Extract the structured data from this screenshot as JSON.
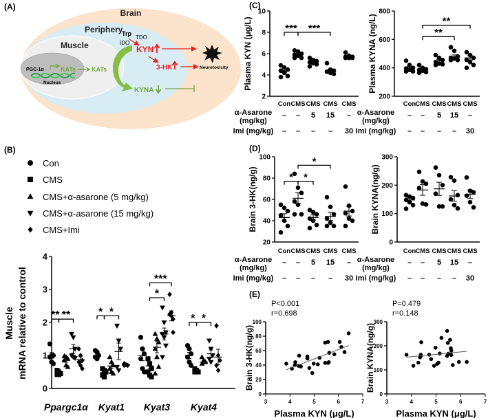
{
  "panel_labels": {
    "a": "(A)",
    "b": "(B)",
    "c": "(C)",
    "d": "(D)",
    "e": "(E)"
  },
  "diagram": {
    "brain": "Brain",
    "periphery": "Periphery",
    "muscle": "Muscle",
    "trp": "Trp",
    "tdo": "TDO",
    "ido": "IDO",
    "kyn": "KYN",
    "hk": "3-HK",
    "neurotoxicity": "Neurotoxicity",
    "pgc": "PGC-1α",
    "kats1": "KATs",
    "kats2": "KATs",
    "nucleus": "Nucleus",
    "kyna": "KYNA",
    "colors": {
      "brain": "#fbe3cc",
      "periphery": "#d7ecf3",
      "muscle": "#efefef",
      "nucleus": "#bdbdbd",
      "red": "#e8201c",
      "green": "#76a33a"
    }
  },
  "legend": [
    {
      "marker": "circle",
      "label": "Con"
    },
    {
      "marker": "square",
      "label": "CMS"
    },
    {
      "marker": "triangle-up",
      "label": "CMS+α-asarone (5 mg/kg)"
    },
    {
      "marker": "triangle-down",
      "label": "CMS+α-asarone (15 mg/kg)"
    },
    {
      "marker": "diamond",
      "label": "CMS+Imi"
    }
  ],
  "treatment_table": {
    "groups": [
      "Con",
      "CMS",
      "CMS",
      "CMS",
      "CMS"
    ],
    "asarone_label_1": "α-Asarone",
    "asarone_label_2": "(mg/kg)",
    "asarone": [
      "–",
      "–",
      "5",
      "15",
      "–"
    ],
    "imi_label": "Imi (mg/kg)",
    "imi": [
      "–",
      "–",
      "–",
      "–",
      "30"
    ]
  },
  "chart_data": [
    {
      "id": "B",
      "type": "scatter",
      "subtype": "grouped-dot-plot",
      "ylabel": [
        "Muscle",
        "mRNA relative to control"
      ],
      "ylim": [
        0,
        4
      ],
      "yticks": [
        "0",
        "1",
        "2",
        "3",
        "4"
      ],
      "categories": [
        "Ppargc1α",
        "Kyat1",
        "Kyat3",
        "Kyat4"
      ],
      "groups": [
        "Con",
        "CMS",
        "CMS+α-asarone (5 mg/kg)",
        "CMS+α-asarone (15 mg/kg)",
        "CMS+Imi"
      ],
      "data": [
        {
          "category": "Ppargc1α",
          "values": [
            [
              1.35,
              1.0,
              1.0,
              0.95,
              0.8,
              0.75
            ],
            [
              0.55,
              0.5,
              0.45,
              0.42,
              0.42
            ],
            [
              0.98,
              0.95,
              0.9,
              0.85,
              0.7,
              0.65
            ],
            [
              1.65,
              1.55,
              1.2,
              1.0,
              0.95,
              0.92
            ],
            [
              1.2,
              1.0,
              0.85,
              0.8,
              0.7,
              0.6
            ]
          ],
          "means": [
            1.0,
            0.48,
            0.85,
            1.2,
            0.87
          ],
          "sig": [
            {
              "from": 0,
              "to": 1,
              "y": 2.1,
              "label": "**"
            },
            {
              "from": 1,
              "to": 3,
              "y": 2.1,
              "label": "**"
            }
          ]
        },
        {
          "category": "Kyat1",
          "values": [
            [
              1.15,
              1.1,
              1.0,
              0.95,
              0.9
            ],
            [
              0.6,
              0.55,
              0.5,
              0.4,
              0.35
            ],
            [
              0.95,
              0.8,
              0.7,
              0.6,
              0.5,
              0.45
            ],
            [
              1.9,
              1.45,
              1.2,
              0.65,
              0.55
            ],
            [
              0.75,
              0.72,
              0.7,
              0.7
            ]
          ],
          "means": [
            1.0,
            0.48,
            0.68,
            1.12,
            0.72
          ],
          "sig": [
            {
              "from": 0,
              "to": 1,
              "y": 2.2,
              "label": "*"
            },
            {
              "from": 1,
              "to": 3,
              "y": 2.2,
              "label": "*"
            }
          ]
        },
        {
          "category": "Kyat3",
          "values": [
            [
              1.55,
              1.2,
              1.05,
              0.9,
              0.6,
              0.5
            ],
            [
              0.9,
              0.75,
              0.6,
              0.5,
              0.4,
              0.35
            ],
            [
              1.65,
              1.5,
              1.4,
              1.2,
              0.95,
              0.65,
              0.45
            ],
            [
              2.45,
              2.0,
              1.7,
              1.65,
              1.55,
              1.3,
              0.95
            ],
            [
              2.85,
              2.2,
              2.1,
              2.25,
              2.3,
              1.7
            ]
          ],
          "means": [
            1.0,
            0.68,
            1.25,
            1.65,
            2.2
          ],
          "sig": [
            {
              "from": 1,
              "to": 3,
              "y": 2.75,
              "label": "*"
            },
            {
              "from": 1,
              "to": 4,
              "y": 3.2,
              "label": "***"
            }
          ]
        },
        {
          "category": "Kyat4",
          "values": [
            [
              1.3,
              1.2,
              1.05,
              0.95,
              0.8,
              0.7
            ],
            [
              0.6,
              0.55,
              0.5,
              0.5
            ],
            [
              0.95,
              0.85,
              0.8,
              0.75
            ],
            [
              1.45,
              1.2,
              1.0,
              0.9,
              0.8
            ],
            [
              1.9,
              1.0,
              0.85,
              0.7,
              0.55
            ]
          ],
          "means": [
            1.0,
            0.52,
            0.8,
            1.05,
            0.95
          ],
          "sig": [
            {
              "from": 0,
              "to": 1,
              "y": 2.0,
              "label": "*"
            },
            {
              "from": 1,
              "to": 3,
              "y": 2.0,
              "label": "*"
            }
          ]
        }
      ]
    },
    {
      "id": "C-left",
      "type": "scatter",
      "subtype": "dot-plot",
      "ylabel": "Plasma KYN (μg/L)",
      "ylim": [
        2,
        10
      ],
      "yticks": [
        "2",
        "4",
        "6",
        "8",
        "10"
      ],
      "values": [
        [
          4.9,
          4.7,
          4.5,
          4.4,
          4.2,
          3.9,
          3.8
        ],
        [
          6.3,
          6.2,
          6.0,
          5.9,
          5.8,
          5.6,
          5.6
        ],
        [
          5.6,
          5.4,
          5.3,
          5.2,
          5.1,
          5.0,
          4.8
        ],
        [
          5.1,
          4.5,
          4.4,
          4.3,
          4.2,
          4.1
        ],
        [
          6.1,
          5.8,
          5.7,
          5.7,
          5.6,
          5.6,
          5.6
        ]
      ],
      "means": [
        4.4,
        5.9,
        5.2,
        4.4,
        5.7
      ],
      "sig": [
        {
          "from": 0,
          "to": 1,
          "y": 8,
          "label": "***"
        },
        {
          "from": 1,
          "to": 3,
          "y": 8,
          "label": "***"
        }
      ]
    },
    {
      "id": "C-right",
      "type": "scatter",
      "subtype": "dot-plot",
      "ylabel": "Plasma KYNA (ng/L)",
      "ylim": [
        200,
        800
      ],
      "yticks": [
        "200",
        "400",
        "600",
        "800"
      ],
      "values": [
        [
          450,
          420,
          400,
          395,
          385,
          375,
          375
        ],
        [
          420,
          400,
          390,
          385,
          380,
          370,
          365
        ],
        [
          490,
          470,
          455,
          440,
          430,
          425,
          420
        ],
        [
          545,
          520,
          480,
          470,
          465,
          455,
          455
        ],
        [
          510,
          490,
          470,
          455,
          440,
          420,
          400
        ]
      ],
      "means": [
        400,
        390,
        450,
        478,
        470
      ],
      "sig": [
        {
          "from": 1,
          "to": 3,
          "y": 620,
          "label": "**"
        },
        {
          "from": 1,
          "to": 4,
          "y": 700,
          "label": "**"
        }
      ]
    },
    {
      "id": "D-left",
      "type": "scatter",
      "subtype": "dot-plot",
      "ylabel": "Brain 3-HK(ng/g)",
      "ylim": [
        20,
        100
      ],
      "yticks": [
        "20",
        "40",
        "60",
        "80",
        "100"
      ],
      "values": [
        [
          55,
          52,
          49,
          45,
          40,
          35,
          29
        ],
        [
          84,
          71,
          66,
          58,
          55,
          46,
          46
        ],
        [
          50,
          48,
          46,
          42,
          40,
          36,
          33
        ],
        [
          62,
          53,
          46,
          42,
          38,
          35,
          35
        ],
        [
          72,
          54,
          49,
          47,
          42,
          40,
          35
        ]
      ],
      "means": [
        43,
        61,
        43,
        44,
        49
      ],
      "sig": [
        {
          "from": 0,
          "to": 1,
          "y": 77,
          "label": "*"
        },
        {
          "from": 1,
          "to": 2,
          "y": 77,
          "label": "*"
        },
        {
          "from": 1,
          "to": 3,
          "y": 92,
          "label": "*"
        }
      ]
    },
    {
      "id": "D-right",
      "type": "scatter",
      "subtype": "dot-plot",
      "ylabel": "Brain KYNA(ng/g)",
      "ylim": [
        0,
        300
      ],
      "yticks": [
        "0",
        "100",
        "200",
        "300"
      ],
      "values": [
        [
          165,
          160,
          155,
          148,
          140,
          130,
          117
        ],
        [
          247,
          213,
          205,
          190,
          135,
          132
        ],
        [
          262,
          235,
          200,
          170,
          125,
          125
        ],
        [
          228,
          216,
          165,
          150,
          130,
          118
        ],
        [
          227,
          180,
          175,
          163,
          140,
          122
        ]
      ],
      "means": [
        148,
        183,
        187,
        162,
        168
      ],
      "sig": []
    },
    {
      "id": "E-left",
      "type": "scatter",
      "xlabel": "Plasma KYN (μg/L)",
      "ylabel": "Brain 3-HK(ng/g)",
      "xlim": [
        3,
        7
      ],
      "ylim": [
        0,
        100
      ],
      "xticks": [
        "3",
        "4",
        "5",
        "6",
        "7"
      ],
      "yticks": [
        "0",
        "20",
        "40",
        "60",
        "80",
        "100"
      ],
      "p_text": "P<0.001",
      "r_text": "r=0.698",
      "points": [
        [
          3.85,
          42
        ],
        [
          4.08,
          35
        ],
        [
          4.2,
          40
        ],
        [
          4.22,
          44
        ],
        [
          4.35,
          39
        ],
        [
          4.38,
          53
        ],
        [
          4.45,
          38
        ],
        [
          4.72,
          52
        ],
        [
          4.72,
          49
        ],
        [
          4.8,
          36
        ],
        [
          4.92,
          29
        ],
        [
          4.98,
          42
        ],
        [
          5.15,
          41
        ],
        [
          5.22,
          50
        ],
        [
          5.45,
          71
        ],
        [
          5.45,
          43
        ],
        [
          5.57,
          72
        ],
        [
          5.57,
          43
        ],
        [
          5.6,
          44
        ],
        [
          5.62,
          57
        ],
        [
          5.83,
          55
        ],
        [
          6.05,
          72
        ],
        [
          6.12,
          65
        ],
        [
          6.25,
          58
        ],
        [
          6.42,
          84
        ]
      ],
      "fit": [
        [
          3.85,
          33.5
        ],
        [
          6.42,
          67
        ]
      ]
    },
    {
      "id": "E-right",
      "type": "scatter",
      "xlabel": "Plasma KYN (μg/L)",
      "ylabel": "Brain KYNA(ng/g)",
      "xlim": [
        3,
        7
      ],
      "ylim": [
        0,
        300
      ],
      "xticks": [
        "3",
        "4",
        "5",
        "6",
        "7"
      ],
      "yticks": [
        "0",
        "100",
        "200",
        "300"
      ],
      "p_text": "P=0.479",
      "r_text": "r=0.148",
      "points": [
        [
          3.8,
          163
        ],
        [
          4.08,
          117
        ],
        [
          4.28,
          130
        ],
        [
          4.35,
          152
        ],
        [
          4.38,
          157
        ],
        [
          4.38,
          163
        ],
        [
          4.4,
          215
        ],
        [
          4.72,
          163
        ],
        [
          4.8,
          145
        ],
        [
          4.92,
          117
        ],
        [
          4.98,
          192
        ],
        [
          5.05,
          125
        ],
        [
          5.1,
          130
        ],
        [
          5.15,
          168
        ],
        [
          5.22,
          233
        ],
        [
          5.45,
          262
        ],
        [
          5.45,
          158
        ],
        [
          5.48,
          212
        ],
        [
          5.5,
          167
        ],
        [
          5.57,
          225
        ],
        [
          5.6,
          190
        ],
        [
          5.62,
          180
        ],
        [
          5.62,
          162
        ],
        [
          5.68,
          120
        ],
        [
          5.93,
          133
        ],
        [
          6.25,
          133
        ]
      ],
      "fit": [
        [
          3.8,
          153
        ],
        [
          6.25,
          177
        ]
      ]
    }
  ]
}
